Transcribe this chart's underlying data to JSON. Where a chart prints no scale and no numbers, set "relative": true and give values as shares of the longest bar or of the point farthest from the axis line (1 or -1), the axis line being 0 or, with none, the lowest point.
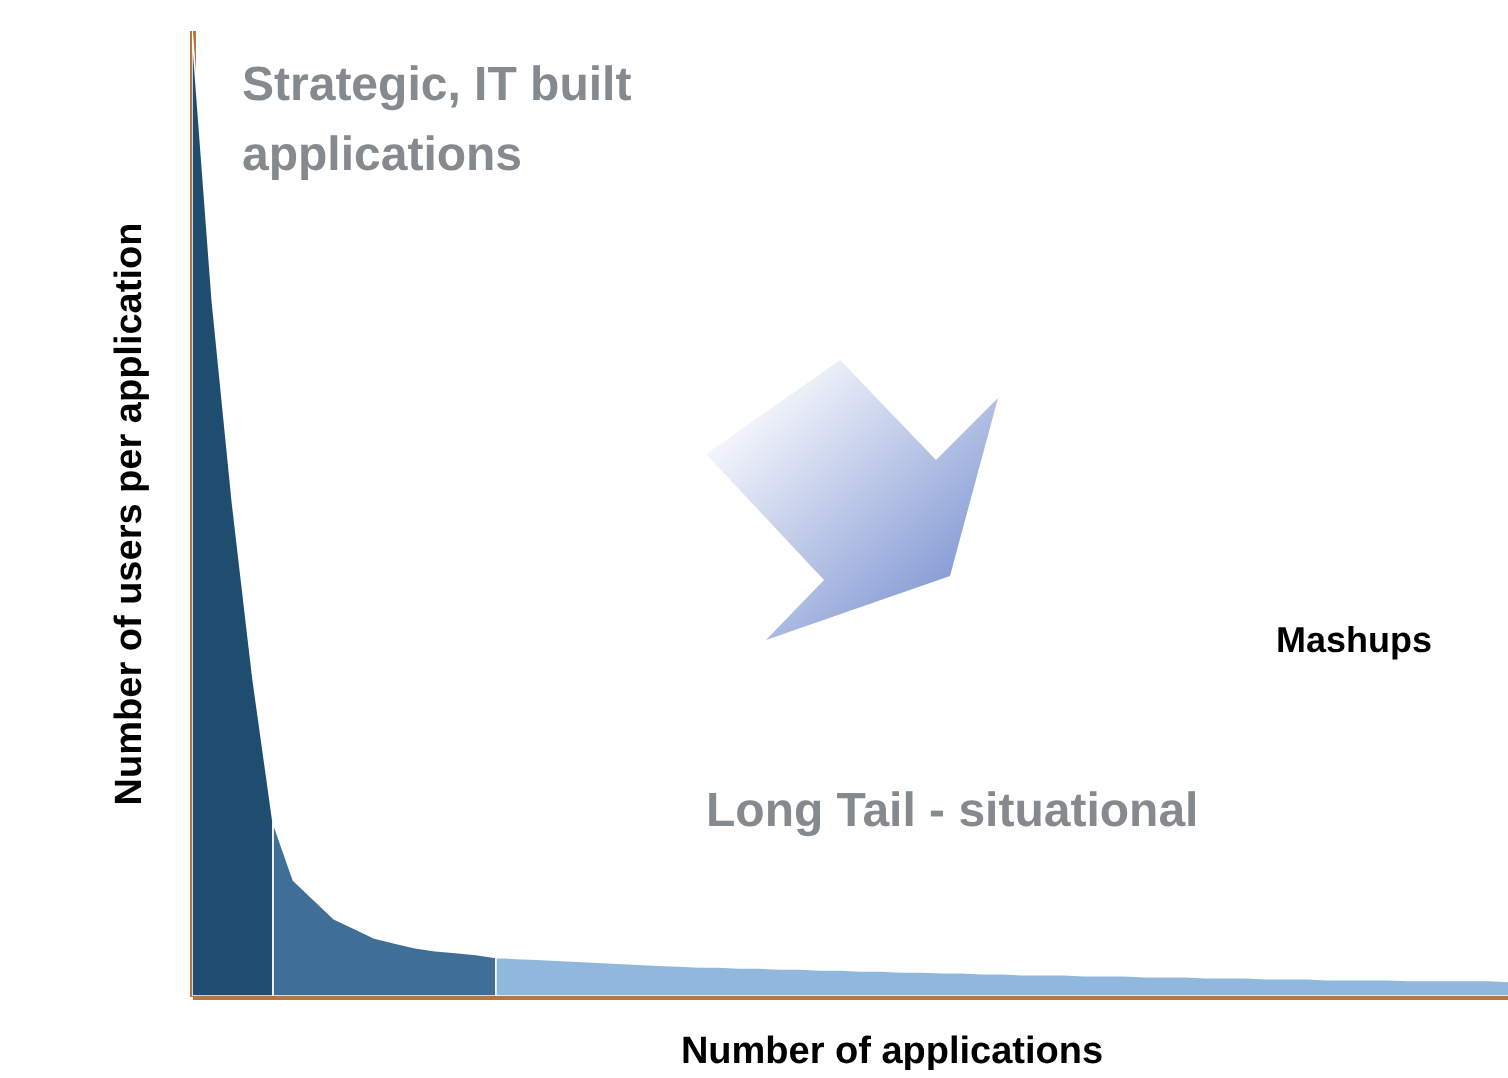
{
  "chart_data": {
    "type": "area",
    "relative": true,
    "xlabel": "Number of applications",
    "ylabel": "Number of users per application",
    "annotations": [
      "Strategic, IT built applications",
      "Mashups",
      "Long Tail - situational"
    ],
    "categories": [
      null,
      null,
      null,
      null,
      null,
      null,
      null,
      null,
      null,
      null,
      null,
      null,
      null,
      null,
      null,
      null,
      null,
      null,
      null,
      null,
      null,
      null,
      null,
      null,
      null,
      null,
      null,
      null,
      null,
      null,
      null,
      null,
      null,
      null,
      null,
      null,
      null,
      null,
      null,
      null,
      null,
      null,
      null,
      null,
      null,
      null,
      null,
      null,
      null,
      null,
      null,
      null,
      null,
      null,
      null,
      null,
      null,
      null,
      null,
      null,
      null,
      null,
      null,
      null,
      null,
      null,
      null,
      null,
      null,
      null
    ],
    "series": [
      {
        "color": "#1e4d6f",
        "values": [
          1.0,
          0.72,
          0.51,
          0.33,
          0.18,
          null,
          null,
          null,
          null,
          null,
          null,
          null,
          null,
          null,
          null,
          null,
          null,
          null,
          null,
          null,
          null,
          null,
          null,
          null,
          null,
          null,
          null,
          null,
          null,
          null,
          null,
          null,
          null,
          null,
          null,
          null,
          null,
          null,
          null,
          null,
          null,
          null,
          null,
          null,
          null,
          null,
          null,
          null,
          null,
          null,
          null,
          null,
          null,
          null,
          null,
          null,
          null,
          null,
          null,
          null,
          null,
          null,
          null,
          null,
          null,
          null,
          null,
          null,
          null,
          null
        ]
      },
      {
        "color": "#3f6f96",
        "values": [
          null,
          null,
          null,
          null,
          0.18,
          0.12,
          0.1,
          0.08,
          0.07,
          0.06,
          0.055,
          0.05,
          0.047,
          0.045,
          0.043,
          0.04,
          null,
          null,
          null,
          null,
          null,
          null,
          null,
          null,
          null,
          null,
          null,
          null,
          null,
          null,
          null,
          null,
          null,
          null,
          null,
          null,
          null,
          null,
          null,
          null,
          null,
          null,
          null,
          null,
          null,
          null,
          null,
          null,
          null,
          null,
          null,
          null,
          null,
          null,
          null,
          null,
          null,
          null,
          null,
          null,
          null,
          null,
          null,
          null,
          null,
          null,
          null,
          null,
          null,
          null
        ]
      },
      {
        "color": "#8fb8dc",
        "values": [
          null,
          null,
          null,
          null,
          null,
          null,
          null,
          null,
          null,
          null,
          null,
          null,
          null,
          null,
          null,
          0.04,
          0.039,
          0.038,
          0.037,
          0.036,
          0.035,
          0.034,
          0.033,
          0.032,
          0.031,
          0.03,
          0.03,
          0.029,
          0.029,
          0.028,
          0.028,
          0.027,
          0.027,
          0.026,
          0.026,
          0.025,
          0.025,
          0.024,
          0.024,
          0.023,
          0.023,
          0.022,
          0.022,
          0.022,
          0.021,
          0.021,
          0.021,
          0.02,
          0.02,
          0.02,
          0.019,
          0.019,
          0.019,
          0.018,
          0.018,
          0.018,
          0.017,
          0.017,
          0.017,
          0.017,
          0.016,
          0.016,
          0.016,
          0.016,
          0.016,
          0.015,
          0.015,
          0.015,
          0.015,
          0.015
        ]
      }
    ]
  }
}
